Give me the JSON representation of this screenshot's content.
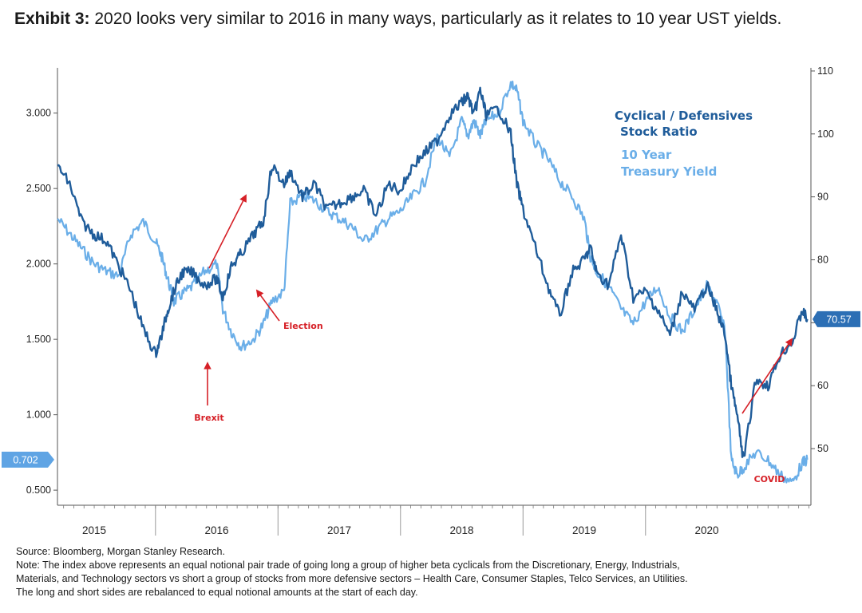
{
  "header": {
    "exhibit_label": "Exhibit 3:",
    "title": "2020 looks very similar to 2016 in many ways, particularly as it relates to 10 year UST yields."
  },
  "footer": {
    "source": "Source: Bloomberg, Morgan Stanley Research.",
    "note_lines": [
      "Note: The index above represents an equal notional pair trade of going long a group of higher beta cyclicals from the Discretionary, Energy, Industrials,",
      "Materials, and Technology sectors vs short a group of stocks from more defensive sectors – Health Care, Consumer Staples, Telco Services, an Utilities.",
      "The long and short sides are rebalanced to equal notional amounts at the start of each day."
    ]
  },
  "colors": {
    "dark_series": "#1f5c9a",
    "light_series": "#6aaee8",
    "annotation": "#d62027"
  },
  "chart_data": {
    "type": "line",
    "x_axis": {
      "labels": [
        "2015",
        "2016",
        "2017",
        "2018",
        "2019",
        "2020"
      ],
      "range": [
        2014.7,
        2020.85
      ]
    },
    "y_left": {
      "ticks": [
        "0.500",
        "1.000",
        "1.500",
        "2.000",
        "2.500",
        "3.000"
      ],
      "range": [
        0.4,
        3.3
      ],
      "last_value_tag": "0.702"
    },
    "y_right": {
      "ticks": [
        "50",
        "60",
        "70",
        "80",
        "90",
        "100",
        "110"
      ],
      "range": [
        41,
        110.5
      ],
      "last_value_tag": "70.57"
    },
    "legend": [
      "Cyclical / Defensives Stock Ratio",
      "10 Year Treasury Yield"
    ],
    "annotations": [
      "Brexit",
      "Election",
      "COVID"
    ],
    "series": [
      {
        "name": "Cyclical / Defensives Stock Ratio",
        "axis": "right",
        "x": [
          2014.7,
          2014.8,
          2014.9,
          2015.0,
          2015.1,
          2015.2,
          2015.3,
          2015.4,
          2015.5,
          2015.55,
          2015.6,
          2015.65,
          2015.72,
          2015.8,
          2015.9,
          2016.0,
          2016.05,
          2016.12,
          2016.2,
          2016.3,
          2016.38,
          2016.45,
          2016.55,
          2016.6,
          2016.7,
          2016.8,
          2016.9,
          2017.0,
          2017.1,
          2017.2,
          2017.3,
          2017.4,
          2017.5,
          2017.6,
          2017.7,
          2017.8,
          2017.9,
          2018.0,
          2018.05,
          2018.1,
          2018.15,
          2018.2,
          2018.3,
          2018.4,
          2018.45,
          2018.5,
          2018.6,
          2018.7,
          2018.8,
          2018.9,
          2019.0,
          2019.05,
          2019.1,
          2019.2,
          2019.3,
          2019.4,
          2019.5,
          2019.6,
          2019.7,
          2019.8,
          2019.9,
          2020.0,
          2020.08,
          2020.15,
          2020.2,
          2020.25,
          2020.3,
          2020.4,
          2020.5,
          2020.6,
          2020.7,
          2020.78,
          2020.82
        ],
        "values": [
          95,
          92,
          86,
          84,
          83,
          79,
          75,
          69,
          65,
          68,
          72,
          75,
          78,
          78,
          76,
          77,
          74,
          79,
          81,
          84,
          86,
          95,
          92,
          94,
          90,
          92,
          88,
          89,
          90,
          91,
          87,
          92,
          91,
          95,
          97,
          99,
          103,
          105,
          106,
          103,
          107,
          103,
          104,
          100,
          92,
          88,
          82,
          76,
          71,
          78,
          80,
          82,
          78,
          76,
          84,
          74,
          75,
          72,
          68,
          75,
          72,
          76,
          72,
          68,
          60,
          55,
          48,
          61,
          60,
          65,
          67,
          72,
          70.57
        ]
      },
      {
        "name": "10 Year Treasury Yield",
        "axis": "left",
        "x": [
          2014.7,
          2014.8,
          2014.9,
          2015.0,
          2015.1,
          2015.2,
          2015.3,
          2015.4,
          2015.5,
          2015.55,
          2015.6,
          2015.65,
          2015.72,
          2015.8,
          2015.9,
          2016.0,
          2016.05,
          2016.12,
          2016.2,
          2016.3,
          2016.38,
          2016.45,
          2016.55,
          2016.6,
          2016.7,
          2016.8,
          2016.9,
          2017.0,
          2017.1,
          2017.2,
          2017.3,
          2017.4,
          2017.5,
          2017.6,
          2017.7,
          2017.8,
          2017.9,
          2018.0,
          2018.05,
          2018.1,
          2018.15,
          2018.2,
          2018.3,
          2018.4,
          2018.45,
          2018.5,
          2018.6,
          2018.7,
          2018.8,
          2018.9,
          2019.0,
          2019.05,
          2019.1,
          2019.2,
          2019.3,
          2019.4,
          2019.5,
          2019.6,
          2019.7,
          2019.8,
          2019.9,
          2020.0,
          2020.08,
          2020.15,
          2020.2,
          2020.25,
          2020.3,
          2020.4,
          2020.5,
          2020.6,
          2020.7,
          2020.78,
          2020.82
        ],
        "values": [
          2.3,
          2.2,
          2.1,
          2.0,
          1.95,
          1.92,
          2.2,
          2.28,
          2.15,
          2.05,
          1.9,
          1.75,
          1.8,
          1.85,
          1.95,
          2.0,
          1.7,
          1.55,
          1.45,
          1.5,
          1.6,
          1.75,
          1.82,
          2.4,
          2.45,
          2.42,
          2.35,
          2.3,
          2.25,
          2.15,
          2.22,
          2.3,
          2.35,
          2.45,
          2.55,
          2.85,
          2.7,
          2.95,
          2.85,
          2.95,
          2.85,
          2.95,
          3.0,
          3.2,
          3.15,
          2.95,
          2.8,
          2.7,
          2.55,
          2.45,
          2.3,
          2.05,
          1.95,
          1.85,
          1.7,
          1.6,
          1.75,
          1.85,
          1.65,
          1.55,
          1.7,
          1.85,
          1.75,
          1.55,
          0.7,
          0.6,
          0.65,
          0.75,
          0.7,
          0.6,
          0.55,
          0.68,
          0.702
        ]
      }
    ]
  }
}
